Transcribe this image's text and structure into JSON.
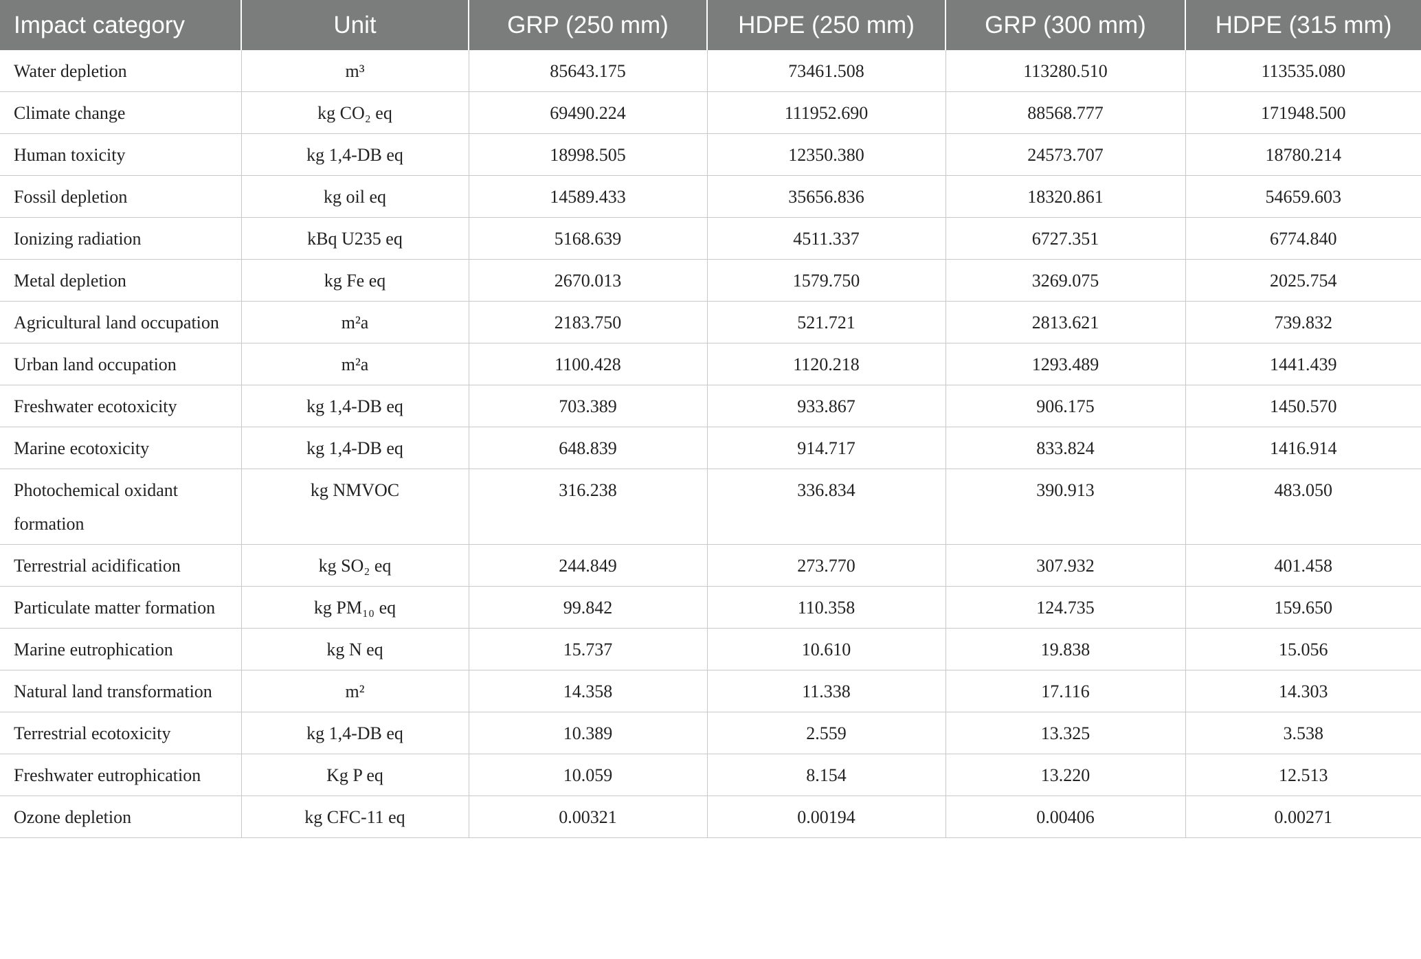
{
  "table": {
    "header": [
      "Impact category",
      "Unit",
      "GRP (250 mm)",
      "HDPE (250 mm)",
      "GRP (300 mm)",
      "HDPE (315 mm)"
    ],
    "rows": [
      [
        "Water depletion",
        "m³",
        "85643.175",
        "73461.508",
        "113280.510",
        "113535.080"
      ],
      [
        "Climate change",
        "kg CO₂ eq",
        "69490.224",
        "111952.690",
        "88568.777",
        "171948.500"
      ],
      [
        "Human toxicity",
        "kg 1,4-DB eq",
        "18998.505",
        "12350.380",
        "24573.707",
        "18780.214"
      ],
      [
        "Fossil depletion",
        "kg oil eq",
        "14589.433",
        "35656.836",
        "18320.861",
        "54659.603"
      ],
      [
        "Ionizing radiation",
        "kBq U235 eq",
        "5168.639",
        "4511.337",
        "6727.351",
        "6774.840"
      ],
      [
        "Metal depletion",
        "kg Fe eq",
        "2670.013",
        "1579.750",
        "3269.075",
        "2025.754"
      ],
      [
        "Agricultural land occupation",
        "m²a",
        "2183.750",
        "521.721",
        "2813.621",
        "739.832"
      ],
      [
        "Urban land occupation",
        "m²a",
        "1100.428",
        "1120.218",
        "1293.489",
        "1441.439"
      ],
      [
        "Freshwater ecotoxicity",
        "kg 1,4-DB eq",
        "703.389",
        "933.867",
        "906.175",
        "1450.570"
      ],
      [
        "Marine ecotoxicity",
        "kg 1,4-DB eq",
        "648.839",
        "914.717",
        "833.824",
        "1416.914"
      ],
      [
        "Photochemical oxidant formation",
        "kg NMVOC",
        "316.238",
        "336.834",
        "390.913",
        "483.050"
      ],
      [
        "Terrestrial acidification",
        "kg SO₂ eq",
        "244.849",
        "273.770",
        "307.932",
        "401.458"
      ],
      [
        "Particulate matter formation",
        "kg PM₁₀ eq",
        "99.842",
        "110.358",
        "124.735",
        "159.650"
      ],
      [
        "Marine eutrophication",
        "kg N eq",
        "15.737",
        "10.610",
        "19.838",
        "15.056"
      ],
      [
        "Natural land transformation",
        "m²",
        "14.358",
        "11.338",
        "17.116",
        "14.303"
      ],
      [
        "Terrestrial ecotoxicity",
        "kg 1,4-DB eq",
        "10.389",
        "2.559",
        "13.325",
        "3.538"
      ],
      [
        "Freshwater eutrophication",
        "Kg P eq",
        "10.059",
        "8.154",
        "13.220",
        "12.513"
      ],
      [
        "Ozone depletion",
        "kg CFC-11 eq",
        "0.00321",
        "0.00194",
        "0.00406",
        "0.00271"
      ]
    ]
  }
}
